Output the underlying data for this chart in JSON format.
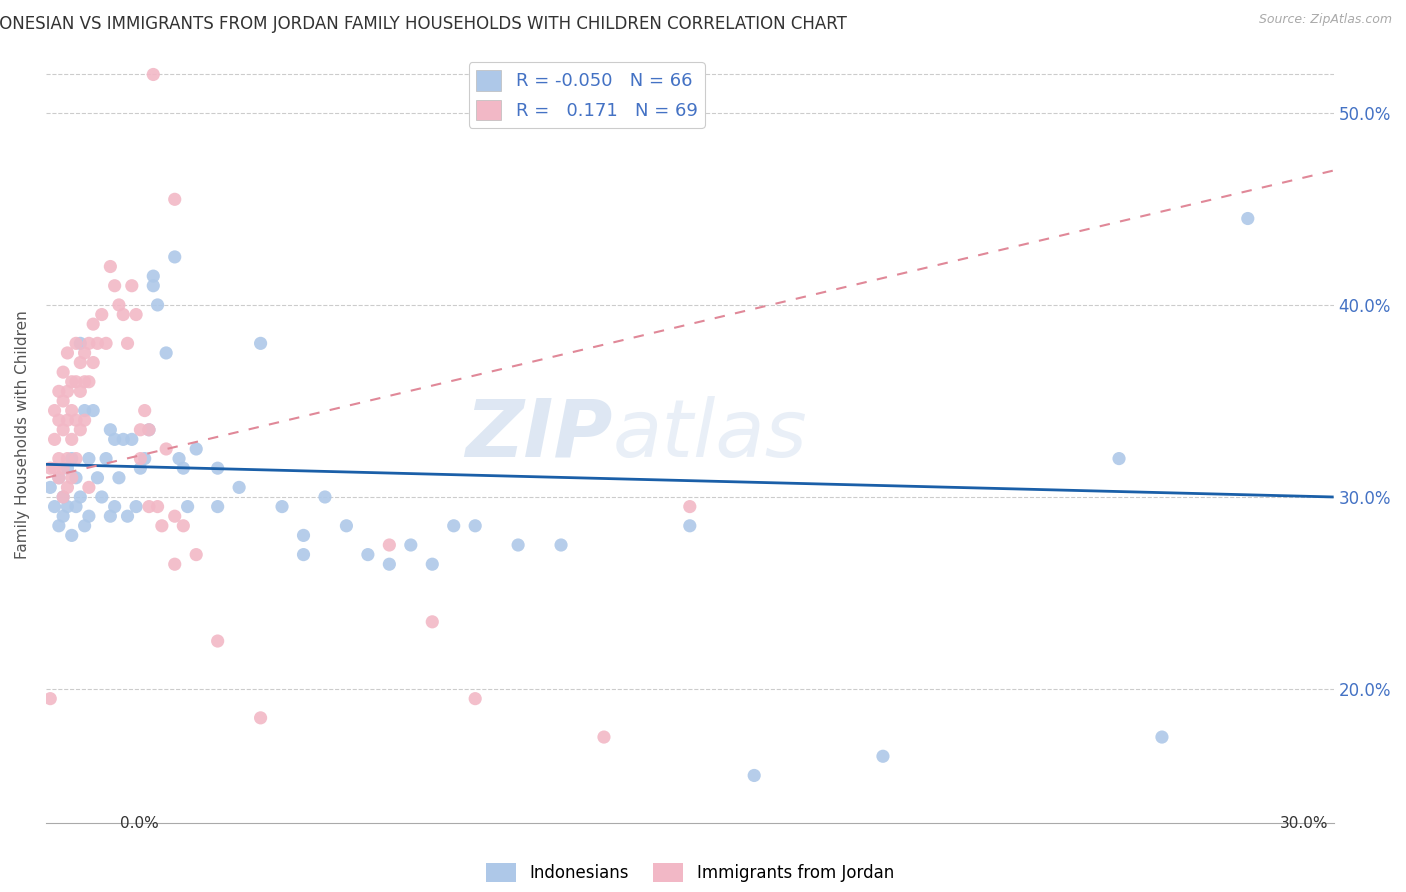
{
  "title": "INDONESIAN VS IMMIGRANTS FROM JORDAN FAMILY HOUSEHOLDS WITH CHILDREN CORRELATION CHART",
  "source": "Source: ZipAtlas.com",
  "ylabel": "Family Households with Children",
  "ytick_vals": [
    0.2,
    0.3,
    0.4,
    0.5
  ],
  "xmin": 0.0,
  "xmax": 0.3,
  "ymin": 0.13,
  "ymax": 0.535,
  "blue_R": "-0.050",
  "blue_N": "66",
  "pink_R": "0.171",
  "pink_N": "69",
  "blue_color": "#aec8e8",
  "pink_color": "#f2b8c6",
  "blue_line_color": "#1a5fa8",
  "pink_line_color": "#e08898",
  "tick_label_color": "#4472c4",
  "legend_label_blue": "Indonesians",
  "legend_label_pink": "Immigrants from Jordan",
  "watermark": "ZIPatlas",
  "blue_trend_y0": 0.317,
  "blue_trend_y1": 0.3,
  "pink_trend_y0": 0.31,
  "pink_trend_y1": 0.47,
  "blue_dots": [
    [
      0.001,
      0.305
    ],
    [
      0.002,
      0.295
    ],
    [
      0.003,
      0.31
    ],
    [
      0.003,
      0.285
    ],
    [
      0.004,
      0.29
    ],
    [
      0.004,
      0.3
    ],
    [
      0.005,
      0.315
    ],
    [
      0.005,
      0.295
    ],
    [
      0.006,
      0.32
    ],
    [
      0.006,
      0.28
    ],
    [
      0.007,
      0.31
    ],
    [
      0.007,
      0.295
    ],
    [
      0.008,
      0.38
    ],
    [
      0.008,
      0.3
    ],
    [
      0.009,
      0.345
    ],
    [
      0.009,
      0.285
    ],
    [
      0.01,
      0.32
    ],
    [
      0.01,
      0.29
    ],
    [
      0.011,
      0.345
    ],
    [
      0.012,
      0.31
    ],
    [
      0.013,
      0.3
    ],
    [
      0.014,
      0.32
    ],
    [
      0.015,
      0.335
    ],
    [
      0.015,
      0.29
    ],
    [
      0.016,
      0.33
    ],
    [
      0.016,
      0.295
    ],
    [
      0.017,
      0.31
    ],
    [
      0.018,
      0.33
    ],
    [
      0.019,
      0.29
    ],
    [
      0.02,
      0.33
    ],
    [
      0.021,
      0.295
    ],
    [
      0.022,
      0.315
    ],
    [
      0.023,
      0.32
    ],
    [
      0.024,
      0.335
    ],
    [
      0.025,
      0.415
    ],
    [
      0.025,
      0.41
    ],
    [
      0.026,
      0.4
    ],
    [
      0.028,
      0.375
    ],
    [
      0.03,
      0.425
    ],
    [
      0.031,
      0.32
    ],
    [
      0.032,
      0.315
    ],
    [
      0.033,
      0.295
    ],
    [
      0.035,
      0.325
    ],
    [
      0.04,
      0.315
    ],
    [
      0.04,
      0.295
    ],
    [
      0.045,
      0.305
    ],
    [
      0.05,
      0.38
    ],
    [
      0.055,
      0.295
    ],
    [
      0.06,
      0.28
    ],
    [
      0.06,
      0.27
    ],
    [
      0.065,
      0.3
    ],
    [
      0.07,
      0.285
    ],
    [
      0.075,
      0.27
    ],
    [
      0.08,
      0.265
    ],
    [
      0.085,
      0.275
    ],
    [
      0.09,
      0.265
    ],
    [
      0.095,
      0.285
    ],
    [
      0.1,
      0.285
    ],
    [
      0.11,
      0.275
    ],
    [
      0.12,
      0.275
    ],
    [
      0.15,
      0.285
    ],
    [
      0.165,
      0.155
    ],
    [
      0.195,
      0.165
    ],
    [
      0.25,
      0.32
    ],
    [
      0.26,
      0.175
    ],
    [
      0.28,
      0.445
    ]
  ],
  "pink_dots": [
    [
      0.001,
      0.195
    ],
    [
      0.001,
      0.315
    ],
    [
      0.002,
      0.345
    ],
    [
      0.002,
      0.33
    ],
    [
      0.002,
      0.315
    ],
    [
      0.003,
      0.355
    ],
    [
      0.003,
      0.34
    ],
    [
      0.003,
      0.32
    ],
    [
      0.003,
      0.31
    ],
    [
      0.004,
      0.365
    ],
    [
      0.004,
      0.35
    ],
    [
      0.004,
      0.335
    ],
    [
      0.004,
      0.315
    ],
    [
      0.004,
      0.3
    ],
    [
      0.005,
      0.375
    ],
    [
      0.005,
      0.355
    ],
    [
      0.005,
      0.34
    ],
    [
      0.005,
      0.32
    ],
    [
      0.005,
      0.305
    ],
    [
      0.006,
      0.36
    ],
    [
      0.006,
      0.345
    ],
    [
      0.006,
      0.33
    ],
    [
      0.006,
      0.31
    ],
    [
      0.007,
      0.38
    ],
    [
      0.007,
      0.36
    ],
    [
      0.007,
      0.34
    ],
    [
      0.007,
      0.32
    ],
    [
      0.008,
      0.37
    ],
    [
      0.008,
      0.355
    ],
    [
      0.008,
      0.335
    ],
    [
      0.009,
      0.375
    ],
    [
      0.009,
      0.36
    ],
    [
      0.009,
      0.34
    ],
    [
      0.01,
      0.38
    ],
    [
      0.01,
      0.36
    ],
    [
      0.01,
      0.305
    ],
    [
      0.011,
      0.39
    ],
    [
      0.011,
      0.37
    ],
    [
      0.012,
      0.38
    ],
    [
      0.013,
      0.395
    ],
    [
      0.014,
      0.38
    ],
    [
      0.015,
      0.42
    ],
    [
      0.016,
      0.41
    ],
    [
      0.017,
      0.4
    ],
    [
      0.018,
      0.395
    ],
    [
      0.019,
      0.38
    ],
    [
      0.02,
      0.41
    ],
    [
      0.021,
      0.395
    ],
    [
      0.022,
      0.335
    ],
    [
      0.022,
      0.32
    ],
    [
      0.023,
      0.345
    ],
    [
      0.024,
      0.335
    ],
    [
      0.024,
      0.295
    ],
    [
      0.025,
      0.52
    ],
    [
      0.026,
      0.295
    ],
    [
      0.027,
      0.285
    ],
    [
      0.028,
      0.325
    ],
    [
      0.03,
      0.455
    ],
    [
      0.03,
      0.29
    ],
    [
      0.03,
      0.265
    ],
    [
      0.032,
      0.285
    ],
    [
      0.035,
      0.27
    ],
    [
      0.04,
      0.225
    ],
    [
      0.05,
      0.185
    ],
    [
      0.08,
      0.275
    ],
    [
      0.09,
      0.235
    ],
    [
      0.1,
      0.195
    ],
    [
      0.13,
      0.175
    ],
    [
      0.15,
      0.295
    ]
  ]
}
